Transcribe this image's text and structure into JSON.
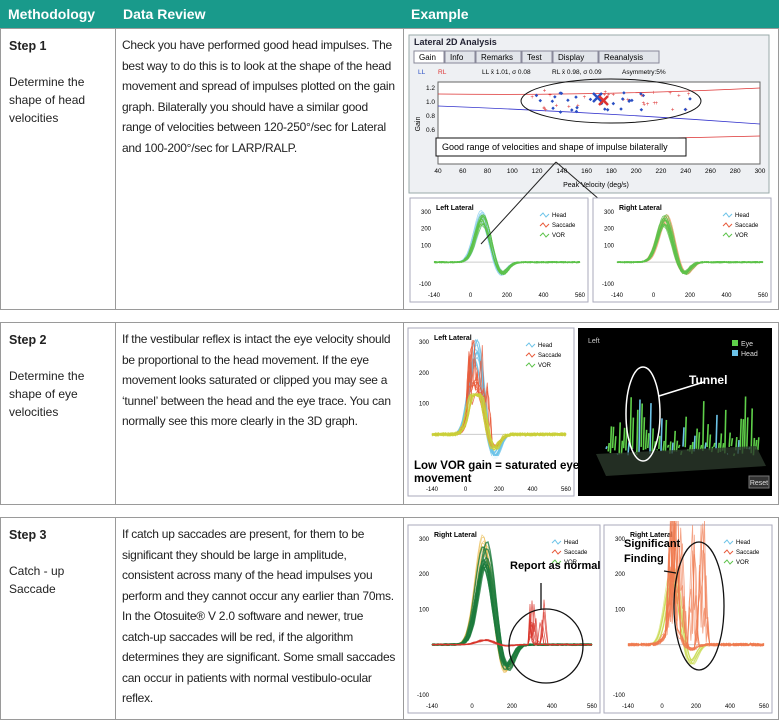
{
  "header": {
    "methodology": "Methodology",
    "data_review": "Data Review",
    "example": "Example"
  },
  "rows": [
    {
      "step": "Step 1",
      "title": "Determine the shape of head velocities",
      "text": "Check you have performed good head impulses. The best way to do this is to look at the shape of the head movement and spread of impulses plotted on the gain graph. Bilaterally you should have a similar good range of velocities between 120-250°/sec for Lateral and 100-200°/sec for LARP/RALP.",
      "example": {
        "title": "Lateral 2D Analysis",
        "tabs": [
          "Gain",
          "Info",
          "Remarks",
          "Test",
          "Display",
          "Reanalysis"
        ],
        "legend": [
          "LL",
          "RL"
        ],
        "stats": [
          "LL x̄ 1.01, σ 0.08",
          "RL x̄ 0.98, σ 0.09"
        ],
        "asymmetry": "Asymmetry:5%",
        "y_label": "Gain",
        "yticks": [
          "1.2",
          "1.0",
          "0.8",
          "0.6"
        ],
        "x_label": "Peak Velocity (deg/s)",
        "xticks": [
          "40",
          "60",
          "80",
          "100",
          "120",
          "140",
          "160",
          "180",
          "200",
          "220",
          "240",
          "260",
          "280",
          "300"
        ],
        "annotation": "Good range of velocities and shape of impulse bilaterally",
        "panels": [
          {
            "title": "Left Lateral",
            "legend": [
              "Head",
              "Saccade",
              "VOR"
            ],
            "yticks": [
              "300",
              "200",
              "100",
              "-100"
            ],
            "xticks": [
              "-140",
              "0",
              "200",
              "400",
              "560"
            ]
          },
          {
            "title": "Right Lateral",
            "legend": [
              "Head",
              "Saccade",
              "VOR"
            ],
            "yticks": [
              "300",
              "200",
              "100",
              "-100"
            ],
            "xticks": [
              "-140",
              "0",
              "200",
              "400",
              "560"
            ]
          }
        ]
      }
    },
    {
      "step": "Step 2",
      "title": "Determine the shape of eye velocities",
      "text": "If the vestibular reflex is intact the eye velocity should be proportional to the head movement. If the eye movement looks saturated or clipped you may see a ‘tunnel’ between the head and the eye trace. You can normally see this more clearly in the 3D graph.",
      "example": {
        "panel": {
          "title": "Left Lateral",
          "legend": [
            "Head",
            "Saccade",
            "VOR"
          ],
          "yticks": [
            "300",
            "200",
            "100",
            "-100"
          ],
          "xticks": [
            "-140",
            "0",
            "200",
            "400",
            "560"
          ]
        },
        "annotation": "Low VOR gain = saturated eye movement",
        "view_title": "Left",
        "view_legend": [
          "Eye",
          "Head"
        ],
        "tunnel": "Tunnel",
        "reset": "Reset"
      }
    },
    {
      "step": "Step 3",
      "title": "Catch - up Saccade",
      "text": "If catch up saccades are present, for them to be significant they should be large in amplitude, consistent across many of the head impulses you perform and they cannot occur any earlier than 70ms. In the Otosuite® V 2.0 software and newer, true catch-up saccades will be red, if the algorithm determines they are significant. Some small saccades can occur in patients with normal vestibulo-ocular reflex.",
      "example": {
        "panels": [
          {
            "title": "Right Lateral",
            "legend": [
              "Head",
              "Saccade",
              "VOR"
            ],
            "yticks": [
              "300",
              "200",
              "100",
              "-100"
            ],
            "xticks": [
              "-140",
              "0",
              "200",
              "400",
              "560"
            ]
          },
          {
            "title": "Right Lateral",
            "legend": [
              "Head",
              "Saccade",
              "VOR"
            ],
            "yticks": [
              "300",
              "200",
              "100",
              "-100"
            ],
            "xticks": [
              "-140",
              "0",
              "200",
              "400",
              "560"
            ]
          }
        ],
        "annotation_left": "Report as normal",
        "annotation_right": "Significant Finding"
      }
    }
  ]
}
